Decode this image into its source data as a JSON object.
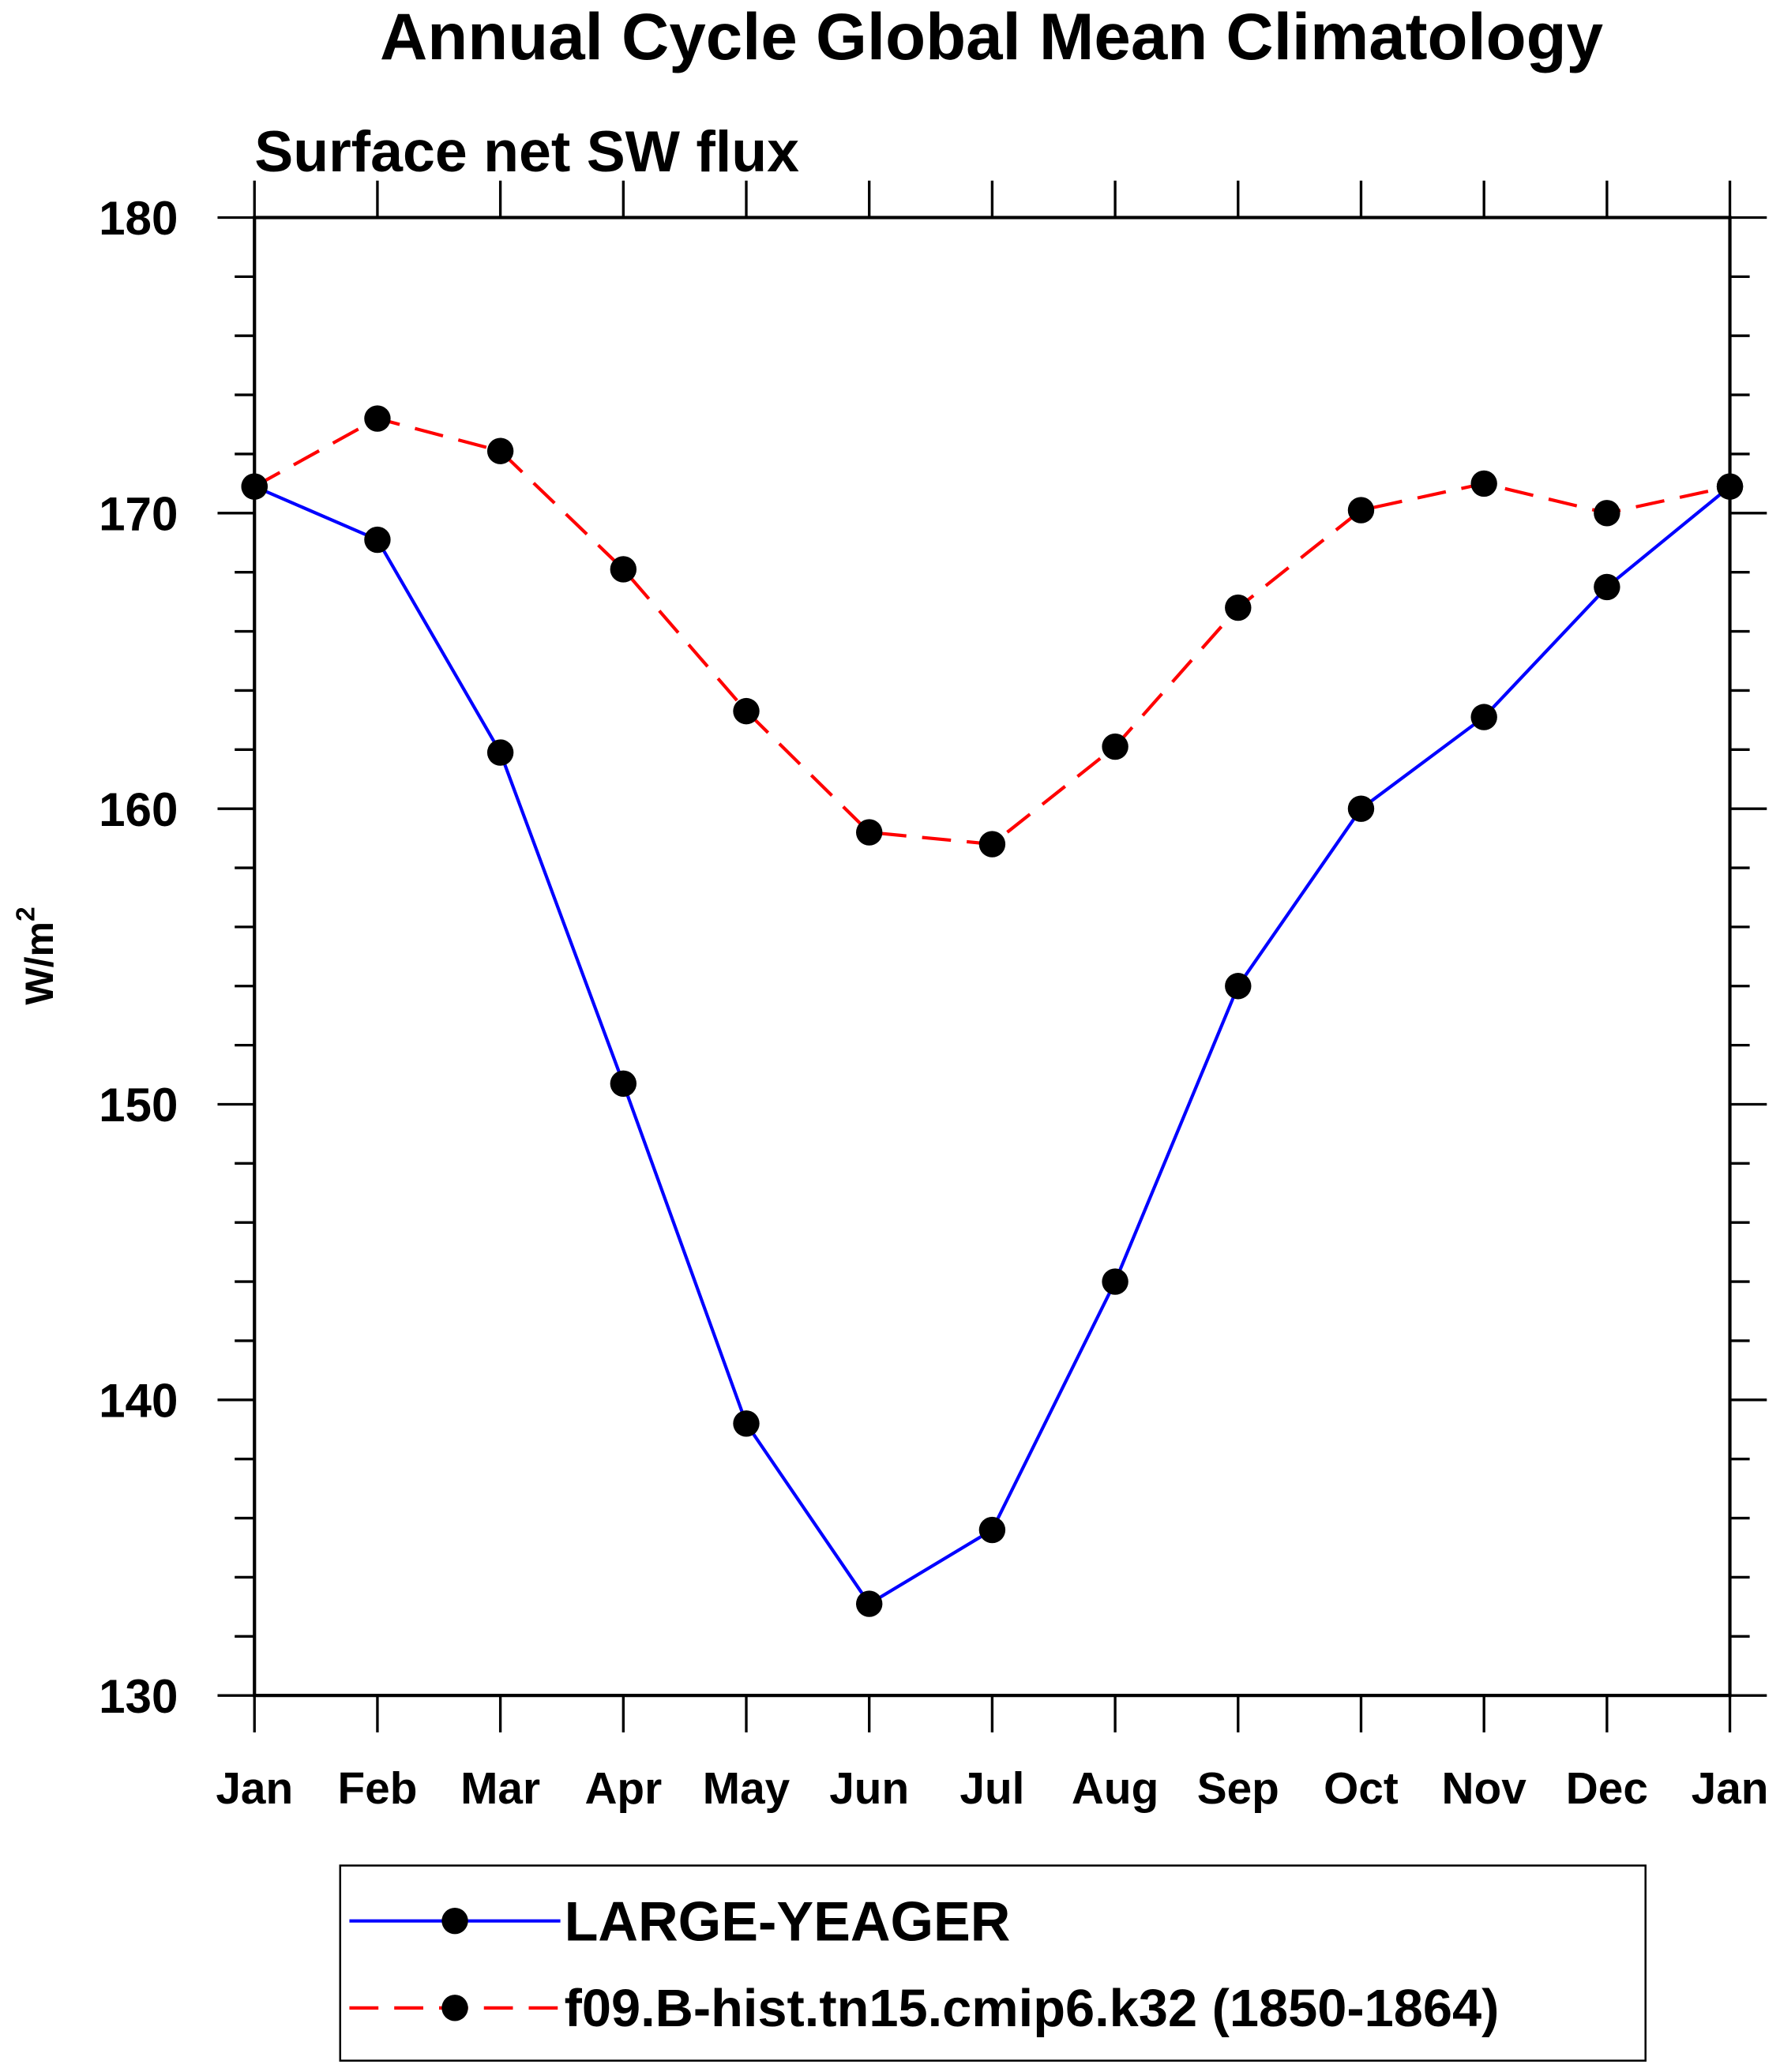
{
  "chart_data": {
    "type": "line",
    "title": "Annual Cycle Global Mean Climatology",
    "subtitle": "Surface net SW flux",
    "xlabel": "",
    "ylabel": "W/m",
    "ylabel_superscript": "2",
    "categories": [
      "Jan",
      "Feb",
      "Mar",
      "Apr",
      "May",
      "Jun",
      "Jul",
      "Aug",
      "Sep",
      "Oct",
      "Nov",
      "Dec",
      "Jan"
    ],
    "ylim": [
      130,
      180
    ],
    "yticks": [
      130,
      140,
      150,
      160,
      170,
      180
    ],
    "y_minor_step": 2,
    "grid": false,
    "legend_placement": "bottom",
    "series": [
      {
        "name": "LARGE-YEAGER",
        "color": "#0000ff",
        "dash": "solid",
        "values": [
          170.9,
          169.1,
          161.9,
          150.7,
          139.2,
          133.1,
          135.6,
          144.0,
          154.0,
          160.0,
          163.1,
          167.5,
          170.9
        ]
      },
      {
        "name": "f09.B-hist.tn15.cmip6.k32 (1850-1864)",
        "color": "#ff0000",
        "dash": "dashed",
        "values": [
          170.9,
          173.2,
          172.1,
          168.1,
          163.3,
          159.2,
          158.8,
          162.1,
          166.8,
          170.1,
          171.0,
          170.0,
          170.9
        ]
      }
    ]
  }
}
